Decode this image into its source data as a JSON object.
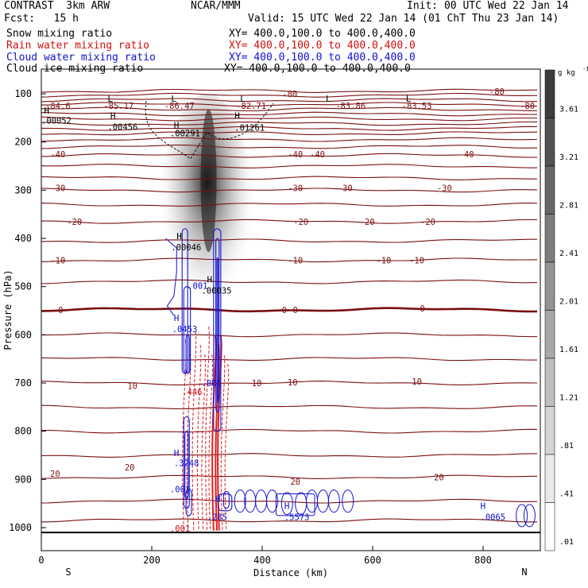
{
  "header": {
    "left1": "CONTRAST  3km ARW",
    "center1": "NCAR/MMM",
    "right1": "Init: 00 UTC Wed 22 Jan 14",
    "left2": "Fcst:   15 h",
    "right2": "Valid: 15 UTC Wed 22 Jan 14 (01 ChT Thu 23 Jan 14)"
  },
  "legend": [
    {
      "label": "Snow mixing ratio",
      "xy": "XY= 400.0,100.0 to 400.0,400.0",
      "color": "#000000"
    },
    {
      "label": "Rain water mixing ratio",
      "xy": "XY= 400.0,100.0 to 400.0,400.0",
      "color": "#d01010"
    },
    {
      "label": "Cloud water mixing ratio",
      "xy": "XY= 400.0,100.0 to 400.0,400.0",
      "color": "#1010d0"
    },
    {
      "label": "Cloud ice mixing ratio",
      "xy": "XY= 400.0,100.0 to 400.0,400.0",
      "color": "#000000"
    }
  ],
  "chart_data": {
    "type": "contour-cross-section",
    "xlabel": "Distance (km)",
    "ylabel": "Pressure (hPa)",
    "xlim": [
      0,
      900
    ],
    "ylim": [
      1010,
      65
    ],
    "x_ticks": [
      0,
      200,
      400,
      600,
      800
    ],
    "y_ticks": [
      100,
      200,
      300,
      400,
      500,
      600,
      700,
      800,
      900,
      1000
    ],
    "x_end_labels": {
      "left": "S",
      "right": "N"
    },
    "colorbar": {
      "unit": "g kg",
      "unit_exp": "-1",
      "labels": [
        "3.61",
        "3.21",
        "2.81",
        "2.41",
        "2.01",
        "1.61",
        "1.21",
        ".81",
        ".41",
        ".01"
      ]
    },
    "temperature_labels": [
      {
        "x": 30,
        "p": 125,
        "text": "-84.6"
      },
      {
        "x": 140,
        "p": 125,
        "text": "-85.17"
      },
      {
        "x": 250,
        "p": 125,
        "text": "-86.47"
      },
      {
        "x": 380,
        "p": 125,
        "text": "-82.71"
      },
      {
        "x": 560,
        "p": 125,
        "text": "-83.86"
      },
      {
        "x": 680,
        "p": 125,
        "text": "-83.53"
      },
      {
        "x": 450,
        "p": 100,
        "text": "-80"
      },
      {
        "x": 825,
        "p": 95,
        "text": "-80"
      },
      {
        "x": 880,
        "p": 125,
        "text": "-80"
      },
      {
        "x": 30,
        "p": 225,
        "text": "-40"
      },
      {
        "x": 460,
        "p": 225,
        "text": "-40"
      },
      {
        "x": 500,
        "p": 225,
        "text": "-40"
      },
      {
        "x": 770,
        "p": 225,
        "text": "-40"
      },
      {
        "x": 30,
        "p": 295,
        "text": "-30"
      },
      {
        "x": 460,
        "p": 295,
        "text": "-30"
      },
      {
        "x": 550,
        "p": 295,
        "text": "-30"
      },
      {
        "x": 730,
        "p": 295,
        "text": "-30"
      },
      {
        "x": 60,
        "p": 365,
        "text": "-20"
      },
      {
        "x": 470,
        "p": 365,
        "text": "-20"
      },
      {
        "x": 590,
        "p": 365,
        "text": "-20"
      },
      {
        "x": 700,
        "p": 365,
        "text": "-20"
      },
      {
        "x": 30,
        "p": 445,
        "text": "-10"
      },
      {
        "x": 460,
        "p": 445,
        "text": "-10"
      },
      {
        "x": 620,
        "p": 445,
        "text": "-10"
      },
      {
        "x": 680,
        "p": 445,
        "text": "-10"
      },
      {
        "x": 35,
        "p": 548,
        "text": "0"
      },
      {
        "x": 440,
        "p": 548,
        "text": "0"
      },
      {
        "x": 460,
        "p": 548,
        "text": "0"
      },
      {
        "x": 690,
        "p": 545,
        "text": "0"
      },
      {
        "x": 165,
        "p": 706,
        "text": "10"
      },
      {
        "x": 390,
        "p": 700,
        "text": "10"
      },
      {
        "x": 455,
        "p": 698,
        "text": "10"
      },
      {
        "x": 680,
        "p": 697,
        "text": "10"
      },
      {
        "x": 25,
        "p": 888,
        "text": "20"
      },
      {
        "x": 160,
        "p": 875,
        "text": "20"
      },
      {
        "x": 460,
        "p": 904,
        "text": "20"
      },
      {
        "x": 720,
        "p": 895,
        "text": "20"
      }
    ],
    "marker_labels": [
      {
        "x": 120,
        "p": 110,
        "text": "L",
        "color": "#000000"
      },
      {
        "x": 235,
        "p": 110,
        "text": "L",
        "color": "#000000"
      },
      {
        "x": 360,
        "p": 110,
        "text": "L",
        "color": "#000000"
      },
      {
        "x": 515,
        "p": 110,
        "text": "L",
        "color": "#000000"
      },
      {
        "x": 660,
        "p": 110,
        "text": "L",
        "color": "#000000"
      },
      {
        "x": 5,
        "p": 135,
        "text": "H",
        "color": "#000000"
      },
      {
        "x": 125,
        "p": 145,
        "text": "H",
        "color": "#000000"
      },
      {
        "x": 240,
        "p": 165,
        "text": "H",
        "color": "#000000"
      },
      {
        "x": 350,
        "p": 145,
        "text": "H",
        "color": "#000000"
      },
      {
        "x": 245,
        "p": 395,
        "text": "H",
        "color": "#000000"
      },
      {
        "x": 300,
        "p": 485,
        "text": "H",
        "color": "#000000"
      },
      {
        "x": 240,
        "p": 565,
        "text": "H",
        "color": "#1010d0"
      },
      {
        "x": 240,
        "p": 845,
        "text": "H",
        "color": "#1010d0"
      },
      {
        "x": 315,
        "p": 940,
        "text": "H",
        "color": "#1010d0"
      },
      {
        "x": 440,
        "p": 955,
        "text": "H",
        "color": "#1010d0"
      },
      {
        "x": 795,
        "p": 955,
        "text": "H",
        "color": "#1010d0"
      }
    ],
    "value_labels": [
      {
        "x": 0,
        "p": 155,
        "text": ".00052",
        "color": "#000000"
      },
      {
        "x": 120,
        "p": 168,
        "text": ".00456",
        "color": "#000000"
      },
      {
        "x": 233,
        "p": 182,
        "text": ".00291",
        "color": "#000000"
      },
      {
        "x": 350,
        "p": 170,
        "text": ".01261",
        "color": "#000000"
      },
      {
        "x": 235,
        "p": 418,
        "text": ".00046",
        "color": "#000000"
      },
      {
        "x": 290,
        "p": 508,
        "text": ".00035",
        "color": "#000000"
      },
      {
        "x": 265,
        "p": 498,
        "text": ".001",
        "color": "#1010d0"
      },
      {
        "x": 237,
        "p": 588,
        "text": ".0453",
        "color": "#1010d0"
      },
      {
        "x": 255,
        "p": 718,
        "text": ".446",
        "color": "#d01010"
      },
      {
        "x": 290,
        "p": 700,
        "text": ".001",
        "color": "#1010d0"
      },
      {
        "x": 240,
        "p": 866,
        "text": ".3248",
        "color": "#1010d0"
      },
      {
        "x": 233,
        "p": 920,
        "text": ".001",
        "color": "#1010d0"
      },
      {
        "x": 300,
        "p": 978,
        "text": ".285",
        "color": "#1010d0"
      },
      {
        "x": 440,
        "p": 978,
        "text": ".5573",
        "color": "#1010d0"
      },
      {
        "x": 795,
        "p": 978,
        "text": ".0065",
        "color": "#1010d0"
      },
      {
        "x": 233,
        "p": 1002,
        "text": ".001",
        "color": "#d01010"
      }
    ],
    "isotherms_p": [
      94,
      103,
      113,
      122,
      132,
      142,
      152,
      162,
      172,
      182,
      195,
      210,
      228,
      250,
      275,
      300,
      330,
      365,
      405,
      445,
      490,
      548,
      600,
      650,
      700,
      750,
      800,
      850,
      895,
      945,
      985
    ],
    "snow_band": {
      "x_center": 300,
      "p_top": 100,
      "p_bottom": 580,
      "max": 3.6
    },
    "surface_p": 1010
  }
}
